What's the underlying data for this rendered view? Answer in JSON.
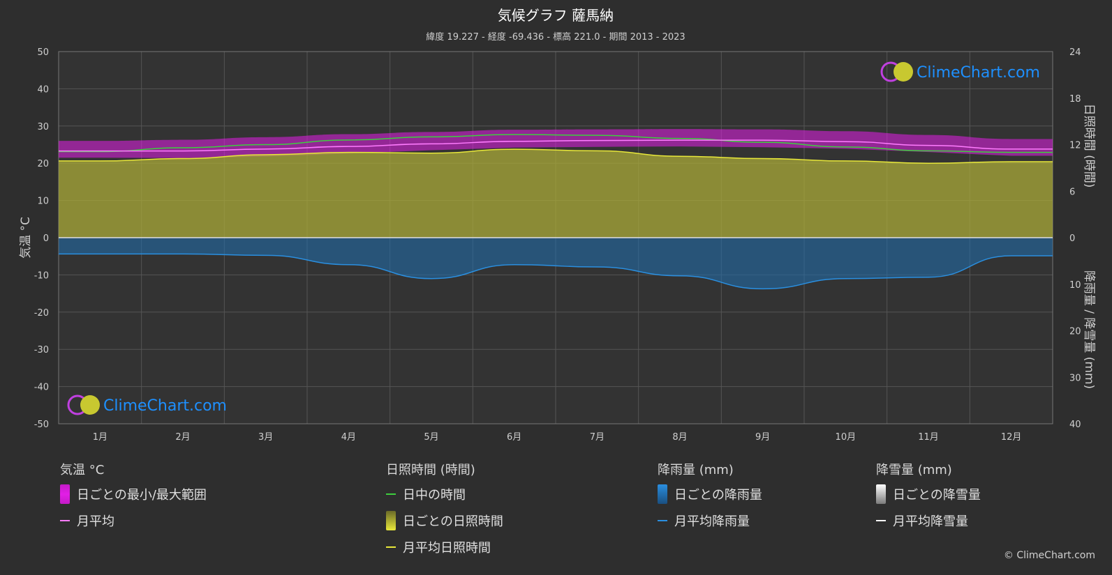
{
  "title": "気候グラフ 薩馬納",
  "subtitle": "緯度 19.227 - 経度 -69.436 - 標高 221.0 - 期間 2013 - 2023",
  "watermark": "ClimeChart.com",
  "copyright": "© ClimeChart.com",
  "axes": {
    "left_title": "気温 °C",
    "right_top_title": "日照時間 (時間)",
    "right_bottom_title": "降雨量 / 降雪量 (mm)",
    "left_ticks": [
      "50",
      "40",
      "30",
      "20",
      "10",
      "0",
      "-10",
      "-20",
      "-30",
      "-40",
      "-50"
    ],
    "right_top_ticks": [
      "24",
      "18",
      "12",
      "6",
      "0"
    ],
    "right_bottom_ticks": [
      "10",
      "20",
      "30",
      "40"
    ]
  },
  "legend": {
    "temperature": {
      "header": "気温 °C",
      "range_label": "日ごとの最小/最大範囲",
      "avg_label": "月平均"
    },
    "sunshine": {
      "header": "日照時間 (時間)",
      "daylight_label": "日中の時間",
      "daily_label": "日ごとの日照時間",
      "avg_label": "月平均日照時間"
    },
    "rain": {
      "header": "降雨量 (mm)",
      "daily_label": "日ごとの降雨量",
      "avg_label": "月平均降雨量"
    },
    "snow": {
      "header": "降雪量 (mm)",
      "daily_label": "日ごとの降雪量",
      "avg_label": "月平均降雪量"
    }
  },
  "colors": {
    "background": "#2e2e2e",
    "plot_bg": "#333333",
    "temp_range": "#e21ee6",
    "temp_avg": "#ff7cff",
    "daylight": "#3ecf3e",
    "sunshine_fill": "#a9a938",
    "sunshine_avg": "#e8e83a",
    "rain_fill": "#1f6fb0",
    "rain_avg": "#2a8fe0",
    "snow": "#ffffff"
  },
  "chart_data": {
    "type": "area",
    "categories": [
      "1月",
      "2月",
      "3月",
      "4月",
      "5月",
      "6月",
      "7月",
      "8月",
      "9月",
      "10月",
      "11月",
      "12月"
    ],
    "temp_ylim": [
      -50,
      50
    ],
    "sun_ylim": [
      0,
      24
    ],
    "precip_ylim": [
      0,
      40
    ],
    "series": [
      {
        "name": "日中の時間",
        "axis": "sunshine",
        "values": [
          11.1,
          11.6,
          12.0,
          12.6,
          13.0,
          13.3,
          13.2,
          12.8,
          12.3,
          11.7,
          11.2,
          11.0
        ]
      },
      {
        "name": "月平均日照時間",
        "axis": "sunshine",
        "values": [
          9.9,
          10.2,
          10.7,
          11.0,
          10.9,
          11.4,
          11.2,
          10.5,
          10.2,
          9.9,
          9.6,
          9.8
        ]
      },
      {
        "name": "月平均",
        "axis": "temperature",
        "values": [
          23.3,
          23.3,
          23.8,
          24.5,
          25.2,
          25.9,
          26.1,
          26.2,
          26.2,
          25.8,
          24.8,
          23.8
        ]
      },
      {
        "name": "日ごとの最小/最大範囲 (最小)",
        "axis": "temperature",
        "values": [
          21.5,
          21.4,
          21.8,
          22.6,
          23.5,
          24.2,
          24.4,
          24.5,
          24.3,
          23.9,
          23.0,
          22.0
        ]
      },
      {
        "name": "日ごとの最小/最大範囲 (最大)",
        "axis": "temperature",
        "values": [
          26.0,
          26.3,
          27.0,
          27.8,
          28.4,
          29.0,
          29.1,
          29.2,
          29.1,
          28.6,
          27.6,
          26.5
        ]
      },
      {
        "name": "月平均降雨量",
        "axis": "precip",
        "values": [
          3.5,
          3.5,
          3.8,
          5.8,
          8.8,
          5.8,
          6.3,
          8.2,
          11.0,
          8.8,
          8.5,
          3.9
        ]
      },
      {
        "name": "月平均降雪量",
        "axis": "precip",
        "values": [
          0,
          0,
          0,
          0,
          0,
          0,
          0,
          0,
          0,
          0,
          0,
          0
        ]
      }
    ]
  }
}
